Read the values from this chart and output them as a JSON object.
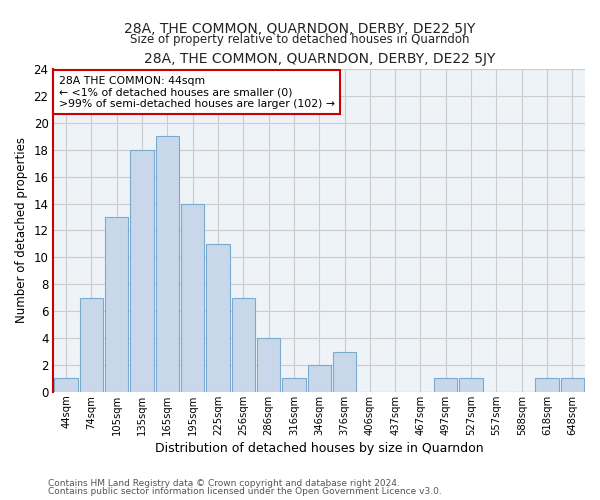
{
  "title": "28A, THE COMMON, QUARNDON, DERBY, DE22 5JY",
  "subtitle": "Size of property relative to detached houses in Quarndon",
  "xlabel": "Distribution of detached houses by size in Quarndon",
  "ylabel": "Number of detached properties",
  "bar_color": "#c8d8ea",
  "bar_edge_color": "#7aaace",
  "categories": [
    "44sqm",
    "74sqm",
    "105sqm",
    "135sqm",
    "165sqm",
    "195sqm",
    "225sqm",
    "256sqm",
    "286sqm",
    "316sqm",
    "346sqm",
    "376sqm",
    "406sqm",
    "437sqm",
    "467sqm",
    "497sqm",
    "527sqm",
    "557sqm",
    "588sqm",
    "618sqm",
    "648sqm"
  ],
  "values": [
    1,
    7,
    13,
    18,
    19,
    14,
    11,
    7,
    4,
    1,
    2,
    3,
    0,
    0,
    0,
    1,
    1,
    0,
    0,
    1,
    1
  ],
  "ylim": [
    0,
    24
  ],
  "yticks": [
    0,
    2,
    4,
    6,
    8,
    10,
    12,
    14,
    16,
    18,
    20,
    22,
    24
  ],
  "annotation_line1": "28A THE COMMON: 44sqm",
  "annotation_line2": "← <1% of detached houses are smaller (0)",
  "annotation_line3": ">99% of semi-detached houses are larger (102) →",
  "annotation_box_color": "#ffffff",
  "annotation_box_edge_color": "#cc0000",
  "grid_color": "#cccccc",
  "bg_color": "#eef3f8",
  "footnote1": "Contains HM Land Registry data © Crown copyright and database right 2024.",
  "footnote2": "Contains public sector information licensed under the Open Government Licence v3.0."
}
